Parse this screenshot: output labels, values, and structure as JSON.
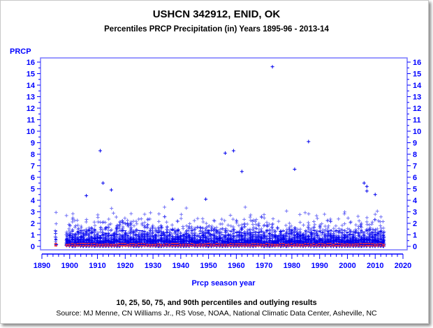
{
  "chart_data": {
    "type": "scatter",
    "title": "USHCN 342912, ENID, OK",
    "subtitle": "Percentiles PRCP Precipitation (in) Years 1895-96 - 2013-14",
    "ylabel": "PRCP",
    "xlabel": "Prcp season year",
    "footnote": "10, 25, 50, 75, and 90th percentiles and outlying results",
    "source": "Source: MJ Menne, CN Williams Jr., RS Vose, NOAA, National Climatic Data Center, Asheville, NC",
    "xlim": [
      1890,
      2020
    ],
    "ylim": [
      0,
      16
    ],
    "x_ticks": [
      1890,
      1900,
      1910,
      1920,
      1930,
      1940,
      1950,
      1960,
      1970,
      1980,
      1990,
      2000,
      2010,
      2020
    ],
    "y_ticks": [
      0,
      1,
      2,
      3,
      4,
      5,
      6,
      7,
      8,
      9,
      10,
      11,
      12,
      13,
      14,
      15,
      16
    ],
    "first_year": 1895,
    "data_years": [
      1895,
      1899,
      2013
    ],
    "typical_percentiles": {
      "p10": 0.02,
      "p25": 0.06,
      "p50": 0.2,
      "p75": 0.5,
      "p90": 1.1
    },
    "outliers": [
      {
        "x": 1906,
        "y": 4.4
      },
      {
        "x": 1911,
        "y": 8.3
      },
      {
        "x": 1912,
        "y": 5.5
      },
      {
        "x": 1915,
        "y": 4.9
      },
      {
        "x": 1937,
        "y": 4.1
      },
      {
        "x": 1949,
        "y": 4.1
      },
      {
        "x": 1956,
        "y": 8.1
      },
      {
        "x": 1959,
        "y": 8.3
      },
      {
        "x": 1962,
        "y": 6.5
      },
      {
        "x": 1973,
        "y": 15.6
      },
      {
        "x": 1981,
        "y": 6.7
      },
      {
        "x": 1986,
        "y": 9.1
      },
      {
        "x": 2006,
        "y": 5.5
      },
      {
        "x": 2007,
        "y": 5.2
      },
      {
        "x": 2007,
        "y": 4.8
      },
      {
        "x": 2010,
        "y": 4.5
      }
    ],
    "colors": {
      "axis": "#0000ff",
      "frame": "#7777ff",
      "points": "#0000ee",
      "percentile_low": "#ff3333",
      "text": "#000000"
    }
  }
}
